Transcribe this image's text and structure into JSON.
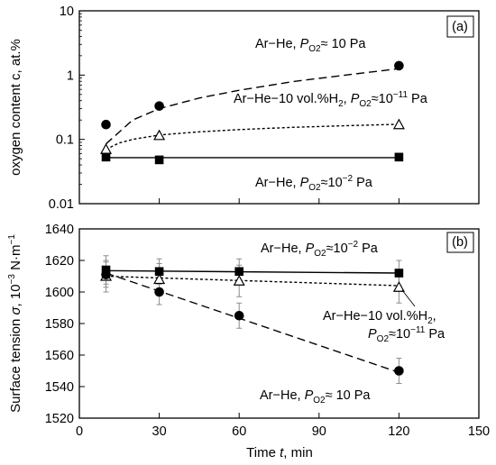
{
  "chart_data": [
    {
      "type": "scatter",
      "panel_label": "(a)",
      "ylabel": "oxygen content c, at.%",
      "xlabel": "",
      "yscale": "log",
      "ylim": [
        0.01,
        10
      ],
      "xlim": [
        0,
        150
      ],
      "yticks": [
        "0.01",
        "0.1",
        "1",
        "10"
      ],
      "series": [
        {
          "label": "Ar−He, PO2≈ 10 Pa",
          "label_parts": {
            "pre": "Ar−He, ",
            "p": "P",
            "sub": "O2",
            "post": "≈ 10 Pa"
          },
          "marker": "filled-circle",
          "line": "long-dash",
          "x": [
            10,
            30,
            120
          ],
          "y": [
            0.17,
            0.33,
            1.4
          ],
          "fit": [
            [
              10,
              0.085
            ],
            [
              20,
              0.2
            ],
            [
              30,
              0.3
            ],
            [
              45,
              0.44
            ],
            [
              60,
              0.58
            ],
            [
              80,
              0.79
            ],
            [
              100,
              1.0
            ],
            [
              120,
              1.26
            ]
          ]
        },
        {
          "label": "Ar−He−10 vol.%H2, PO2≈10−11 Pa",
          "label_parts": {
            "pre": "Ar−He−10 vol.%H",
            "h2sub": "2",
            "mid": ", ",
            "p": "P",
            "sub": "O2",
            "post": "≈10",
            "exp": "−11",
            "tail": " Pa"
          },
          "marker": "open-triangle",
          "line": "short-dash",
          "x": [
            10,
            30,
            120
          ],
          "y": [
            0.07,
            0.115,
            0.17
          ],
          "fit": [
            [
              10,
              0.07
            ],
            [
              15,
              0.088
            ],
            [
              20,
              0.1
            ],
            [
              30,
              0.117
            ],
            [
              45,
              0.131
            ],
            [
              60,
              0.142
            ],
            [
              80,
              0.154
            ],
            [
              100,
              0.163
            ],
            [
              120,
              0.172
            ]
          ]
        },
        {
          "label": "Ar−He, PO2≈10−2 Pa",
          "label_parts": {
            "pre": "Ar−He, ",
            "p": "P",
            "sub": "O2",
            "post": "≈10",
            "exp": "−2",
            "tail": " Pa"
          },
          "marker": "filled-square",
          "line": "solid",
          "x": [
            10,
            30,
            120
          ],
          "y": [
            0.053,
            0.048,
            0.053
          ],
          "fit": [
            [
              10,
              0.052
            ],
            [
              120,
              0.052
            ]
          ]
        }
      ]
    },
    {
      "type": "line",
      "panel_label": "(b)",
      "ylabel": "Surface tension σ, 10−3 N·m−1",
      "ylabel_parts": {
        "pre": "Surface tension ",
        "sigma": "σ",
        "mid": ", 10",
        "exp1": "−3",
        "unit": " N·m",
        "exp2": "−1"
      },
      "xlabel": "Time t, min",
      "xlabel_parts": {
        "pre": "Time ",
        "t": "t",
        "post": ", min"
      },
      "ylim": [
        1520,
        1640
      ],
      "xlim": [
        0,
        150
      ],
      "xticks": [
        "0",
        "30",
        "60",
        "90",
        "120",
        "150"
      ],
      "yticks": [
        "1520",
        "1540",
        "1560",
        "1580",
        "1600",
        "1620",
        "1640"
      ],
      "series": [
        {
          "label": "Ar−He, PO2≈10−2 Pa",
          "label_parts": {
            "pre": "Ar−He, ",
            "p": "P",
            "sub": "O2",
            "post": "≈10",
            "exp": "−2",
            "tail": " Pa"
          },
          "marker": "filled-square",
          "line": "solid",
          "x": [
            10,
            30,
            60,
            120
          ],
          "y": [
            1614,
            1613,
            1613,
            1612
          ],
          "err": [
            9,
            8,
            8,
            8
          ],
          "fit": [
            [
              10,
              1613.5
            ],
            [
              120,
              1612
            ]
          ]
        },
        {
          "label": "Ar−He−10 vol.%H2, PO2≈10−11 Pa",
          "label_parts": {
            "line1": "Ar−He−10 vol.%H",
            "h2sub": "2",
            "comma": ",",
            "p": "P",
            "sub": "O2",
            "post": "≈10",
            "exp": "−11",
            "tail": " Pa"
          },
          "marker": "open-triangle",
          "line": "short-dash",
          "x": [
            10,
            30,
            60,
            120
          ],
          "y": [
            1610,
            1608,
            1607,
            1603
          ],
          "err": [
            10,
            10,
            10,
            10
          ],
          "fit": [
            [
              10,
              1610
            ],
            [
              120,
              1604
            ]
          ]
        },
        {
          "label": "Ar−He, PO2≈ 10 Pa",
          "label_parts": {
            "pre": "Ar−He, ",
            "p": "P",
            "sub": "O2",
            "post": "≈ 10 Pa"
          },
          "marker": "filled-circle",
          "line": "long-dash",
          "x": [
            10,
            30,
            60,
            120
          ],
          "y": [
            1611,
            1600,
            1585,
            1550
          ],
          "err": [
            8,
            8,
            8,
            8
          ],
          "fit": [
            [
              10,
              1612
            ],
            [
              120,
              1549
            ]
          ]
        }
      ]
    }
  ]
}
